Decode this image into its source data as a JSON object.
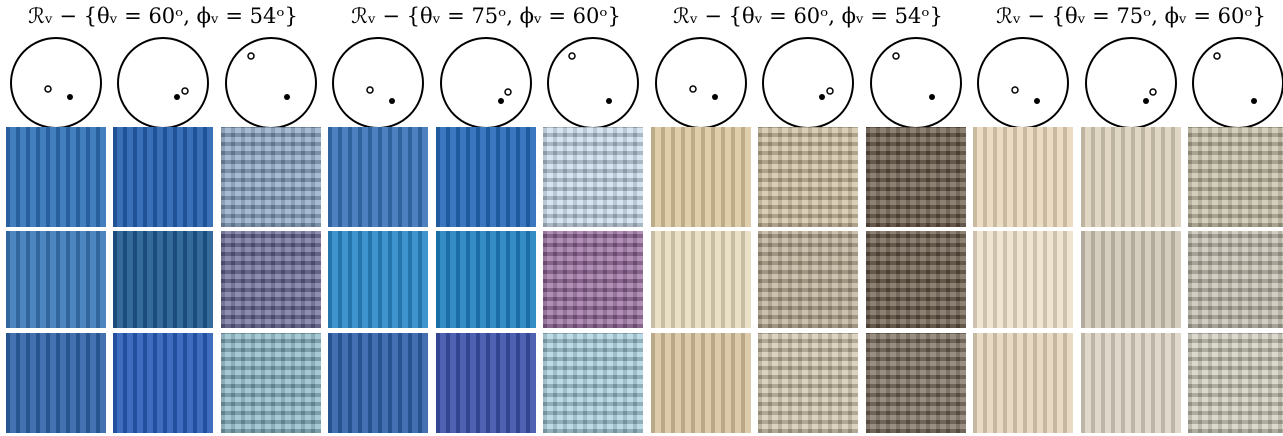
{
  "headers": [
    "ℛᵥ − {θᵥ = 60ᵒ, ϕᵥ = 54ᵒ}",
    "ℛᵥ − {θᵥ = 75ᵒ, ϕᵥ = 60ᵒ}",
    "ℛᵥ − {θᵥ = 60ᵒ, ϕᵥ = 54ᵒ}",
    "ℛᵥ − {θᵥ = 75ᵒ, ϕᵥ = 60ᵒ}"
  ]
}
